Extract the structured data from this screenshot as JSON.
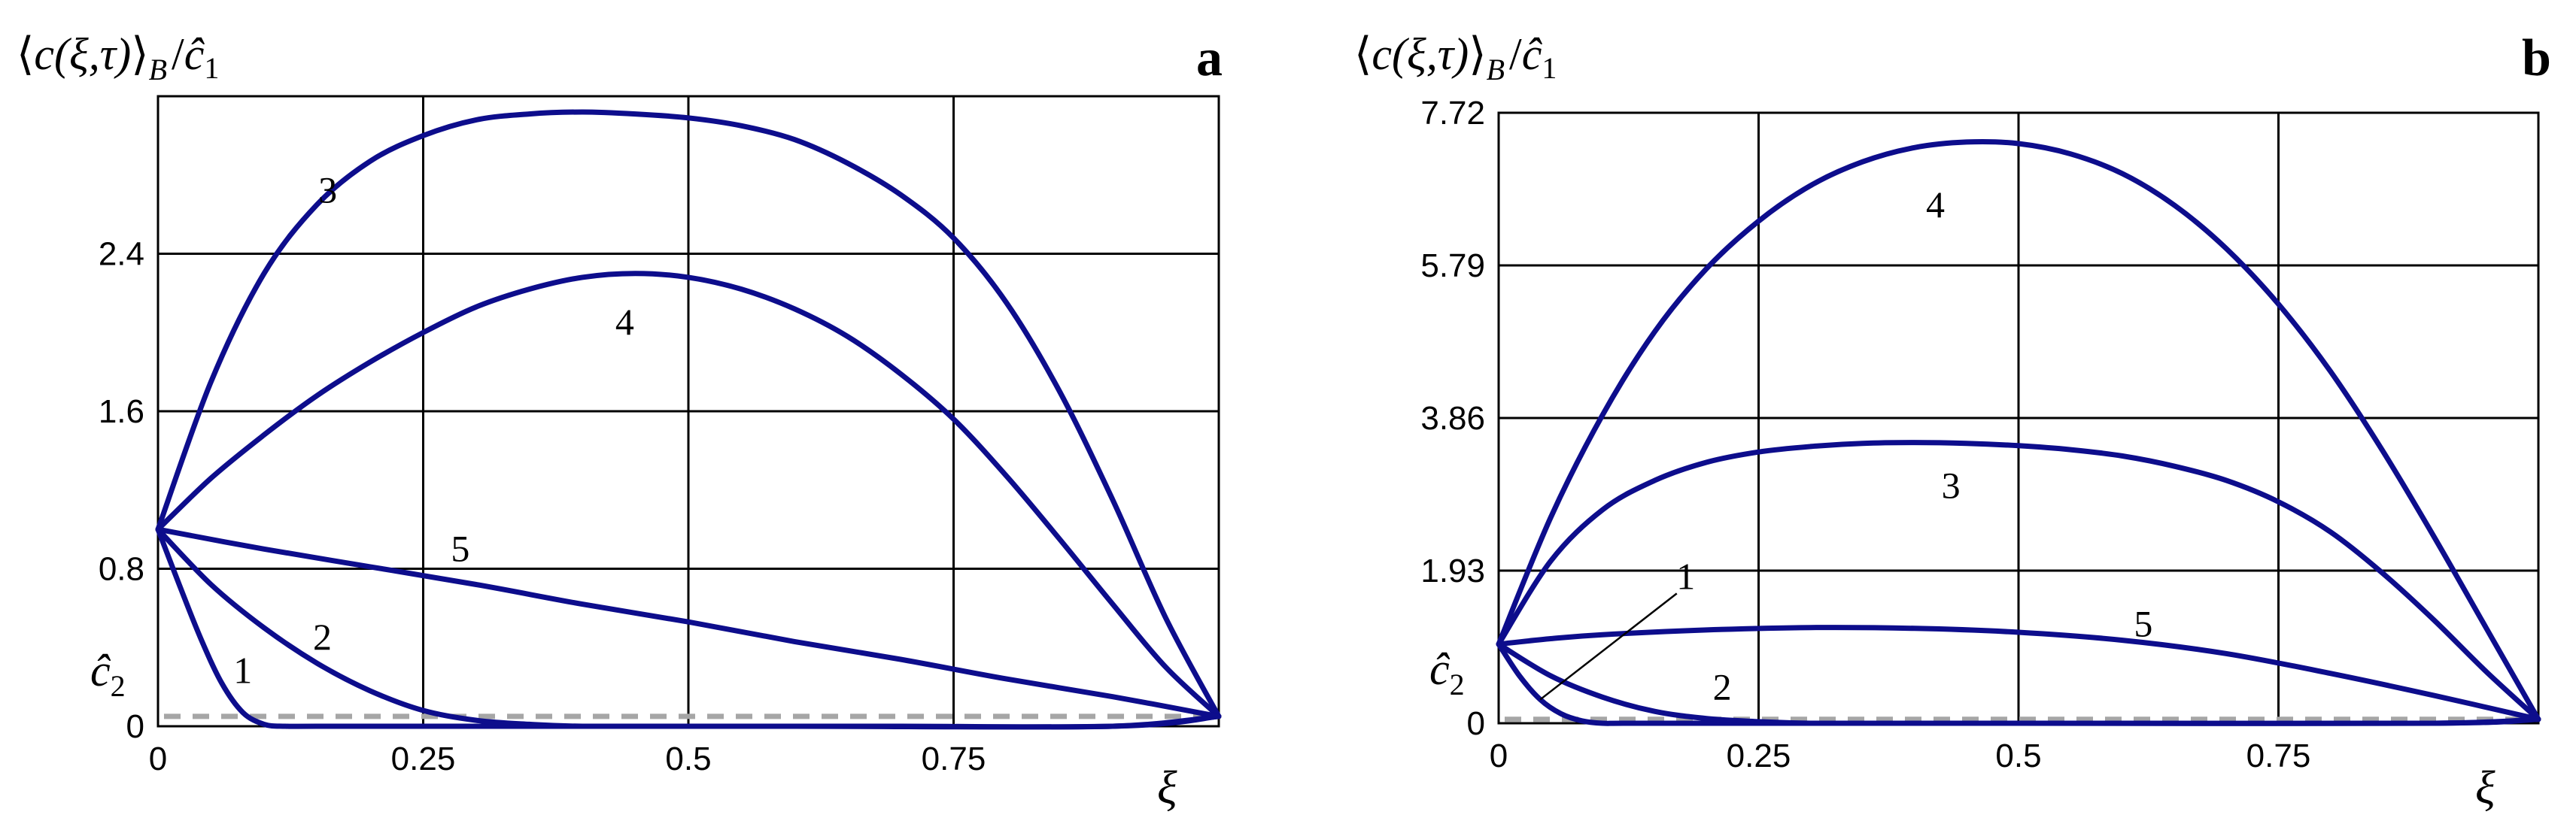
{
  "chart_data": [
    {
      "type": "line",
      "panel_label": "a",
      "ylabel": "⟨c(ξ,τ)⟩B / ĉ1",
      "ylabel_parts": {
        "open": "⟨",
        "body": "c(ξ,τ)",
        "close": "⟩",
        "sub": "B",
        "slash": "/",
        "den": "ĉ",
        "den_sub": "1"
      },
      "xlabel": "ξ",
      "xlim": [
        0,
        1
      ],
      "ylim": [
        0,
        3.2
      ],
      "x_ticks": [
        "0",
        "0.25",
        "0.5",
        "0.75"
      ],
      "x_tick_values": [
        0,
        0.25,
        0.5,
        0.75
      ],
      "y_ticks": [
        "0",
        "0.8",
        "1.6",
        "2.4"
      ],
      "y_tick_values": [
        0,
        0.8,
        1.6,
        2.4
      ],
      "grid": true,
      "c2_label": {
        "text": "ĉ",
        "sub": "2",
        "value": 0.05
      },
      "series": [
        {
          "name": "1",
          "x": [
            0,
            0.02,
            0.04,
            0.06,
            0.08,
            0.1,
            0.12,
            0.15,
            0.3,
            0.6,
            0.9,
            1.0
          ],
          "y": [
            1.0,
            0.72,
            0.45,
            0.22,
            0.07,
            0.01,
            0.0,
            0.0,
            0.0,
            0.0,
            0.0,
            0.05
          ],
          "label_at": [
            0.08,
            0.28
          ]
        },
        {
          "name": "2",
          "x": [
            0,
            0.05,
            0.1,
            0.15,
            0.2,
            0.25,
            0.3,
            0.35,
            0.4,
            0.5,
            0.7,
            0.9,
            1.0
          ],
          "y": [
            1.0,
            0.72,
            0.5,
            0.32,
            0.18,
            0.08,
            0.03,
            0.01,
            0.0,
            0.0,
            0.0,
            0.0,
            0.05
          ],
          "label_at": [
            0.155,
            0.45
          ]
        },
        {
          "name": "3",
          "x": [
            0,
            0.05,
            0.1,
            0.15,
            0.2,
            0.25,
            0.3,
            0.35,
            0.4,
            0.45,
            0.5,
            0.55,
            0.6,
            0.65,
            0.7,
            0.75,
            0.8,
            0.85,
            0.9,
            0.95,
            1.0
          ],
          "y": [
            1.0,
            1.75,
            2.3,
            2.65,
            2.87,
            3.0,
            3.08,
            3.11,
            3.12,
            3.11,
            3.09,
            3.05,
            2.98,
            2.86,
            2.7,
            2.48,
            2.15,
            1.7,
            1.15,
            0.55,
            0.05
          ],
          "label_at": [
            0.16,
            2.72
          ]
        },
        {
          "name": "4",
          "x": [
            0,
            0.05,
            0.1,
            0.15,
            0.2,
            0.25,
            0.3,
            0.35,
            0.4,
            0.45,
            0.5,
            0.55,
            0.6,
            0.65,
            0.7,
            0.75,
            0.8,
            0.85,
            0.9,
            0.95,
            1.0
          ],
          "y": [
            1.0,
            1.26,
            1.48,
            1.68,
            1.85,
            2.0,
            2.13,
            2.22,
            2.28,
            2.3,
            2.28,
            2.22,
            2.12,
            1.98,
            1.79,
            1.56,
            1.27,
            0.95,
            0.62,
            0.3,
            0.05
          ],
          "label_at": [
            0.44,
            2.05
          ]
        },
        {
          "name": "5",
          "x": [
            0,
            0.1,
            0.2,
            0.3,
            0.4,
            0.5,
            0.6,
            0.7,
            0.8,
            0.9,
            1.0
          ],
          "y": [
            1.0,
            0.9,
            0.81,
            0.72,
            0.62,
            0.53,
            0.43,
            0.34,
            0.24,
            0.15,
            0.05
          ],
          "label_at": [
            0.285,
            0.9
          ]
        }
      ]
    },
    {
      "type": "line",
      "panel_label": "b",
      "ylabel": "⟨c(ξ,τ)⟩B / ĉ1",
      "ylabel_parts": {
        "open": "⟨",
        "body": "c(ξ,τ)",
        "close": "⟩",
        "sub": "B",
        "slash": "/",
        "den": "ĉ",
        "den_sub": "1"
      },
      "xlabel": "ξ",
      "xlim": [
        0,
        1
      ],
      "ylim": [
        0,
        7.72
      ],
      "x_ticks": [
        "0",
        "0.25",
        "0.5",
        "0.75"
      ],
      "x_tick_values": [
        0,
        0.25,
        0.5,
        0.75
      ],
      "y_ticks": [
        "0",
        "1.93",
        "3.86",
        "5.79",
        "7.72"
      ],
      "y_tick_values": [
        0,
        1.93,
        3.86,
        5.79,
        7.72
      ],
      "grid": true,
      "c2_label": {
        "text": "ĉ",
        "sub": "2",
        "value": 0.05
      },
      "series": [
        {
          "name": "1",
          "x": [
            0,
            0.02,
            0.04,
            0.06,
            0.08,
            0.1,
            0.12,
            0.2,
            0.5,
            0.9,
            1.0
          ],
          "y": [
            1.0,
            0.6,
            0.3,
            0.12,
            0.03,
            0.0,
            0.0,
            0.0,
            0.0,
            0.0,
            0.05
          ],
          "label_at": [
            0.18,
            1.85
          ],
          "leader_to": [
            0.04,
            0.3
          ]
        },
        {
          "name": "2",
          "x": [
            0,
            0.05,
            0.1,
            0.15,
            0.2,
            0.25,
            0.3,
            0.4,
            0.6,
            0.9,
            1.0
          ],
          "y": [
            1.0,
            0.6,
            0.33,
            0.15,
            0.06,
            0.02,
            0.0,
            0.0,
            0.0,
            0.0,
            0.05
          ],
          "label_at": [
            0.215,
            0.45
          ]
        },
        {
          "name": "3",
          "x": [
            0,
            0.05,
            0.1,
            0.15,
            0.2,
            0.25,
            0.3,
            0.35,
            0.4,
            0.45,
            0.5,
            0.55,
            0.6,
            0.65,
            0.7,
            0.75,
            0.8,
            0.85,
            0.9,
            0.95,
            1.0
          ],
          "y": [
            1.0,
            2.05,
            2.7,
            3.07,
            3.3,
            3.43,
            3.5,
            3.54,
            3.55,
            3.54,
            3.51,
            3.46,
            3.38,
            3.25,
            3.07,
            2.8,
            2.42,
            1.9,
            1.3,
            0.65,
            0.05
          ],
          "label_at": [
            0.435,
            3.0
          ]
        },
        {
          "name": "4",
          "x": [
            0,
            0.05,
            0.1,
            0.15,
            0.2,
            0.25,
            0.3,
            0.35,
            0.4,
            0.45,
            0.5,
            0.55,
            0.6,
            0.65,
            0.7,
            0.75,
            0.8,
            0.85,
            0.9,
            0.95,
            1.0
          ],
          "y": [
            1.0,
            2.6,
            3.9,
            4.95,
            5.75,
            6.35,
            6.8,
            7.1,
            7.28,
            7.35,
            7.33,
            7.2,
            6.95,
            6.55,
            6.0,
            5.3,
            4.45,
            3.45,
            2.35,
            1.2,
            0.05
          ],
          "label_at": [
            0.42,
            6.55
          ]
        },
        {
          "name": "5",
          "x": [
            0,
            0.05,
            0.1,
            0.2,
            0.3,
            0.4,
            0.5,
            0.6,
            0.7,
            0.8,
            0.9,
            1.0
          ],
          "y": [
            1.0,
            1.07,
            1.12,
            1.18,
            1.21,
            1.2,
            1.15,
            1.05,
            0.88,
            0.63,
            0.35,
            0.05
          ],
          "label_at": [
            0.62,
            1.25
          ]
        }
      ]
    }
  ]
}
